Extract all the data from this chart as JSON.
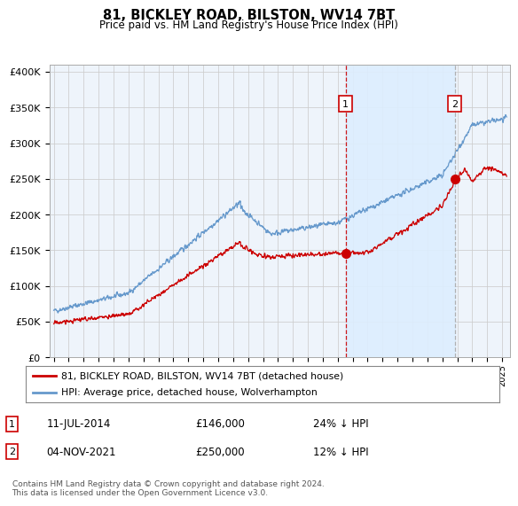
{
  "title": "81, BICKLEY ROAD, BILSTON, WV14 7BT",
  "subtitle": "Price paid vs. HM Land Registry's House Price Index (HPI)",
  "ylabel_ticks": [
    "£0",
    "£50K",
    "£100K",
    "£150K",
    "£200K",
    "£250K",
    "£300K",
    "£350K",
    "£400K"
  ],
  "ytick_values": [
    0,
    50000,
    100000,
    150000,
    200000,
    250000,
    300000,
    350000,
    400000
  ],
  "ylim": [
    0,
    410000
  ],
  "xlim_start": 1994.7,
  "xlim_end": 2025.5,
  "legend_line1": "81, BICKLEY ROAD, BILSTON, WV14 7BT (detached house)",
  "legend_line2": "HPI: Average price, detached house, Wolverhampton",
  "sale1_date": "11-JUL-2014",
  "sale1_price": "£146,000",
  "sale1_note": "24% ↓ HPI",
  "sale2_date": "04-NOV-2021",
  "sale2_price": "£250,000",
  "sale2_note": "12% ↓ HPI",
  "footer": "Contains HM Land Registry data © Crown copyright and database right 2024.\nThis data is licensed under the Open Government Licence v3.0.",
  "red_color": "#cc0000",
  "blue_color": "#6699cc",
  "shade_color": "#ddeeff",
  "vline1_color": "#cc0000",
  "vline2_color": "#aaaaaa",
  "bg_color": "#eef4fb",
  "grid_color": "#cccccc",
  "sale1_year": 2014.53,
  "sale2_year": 2021.84,
  "sale1_price_val": 146000,
  "sale2_price_val": 250000
}
